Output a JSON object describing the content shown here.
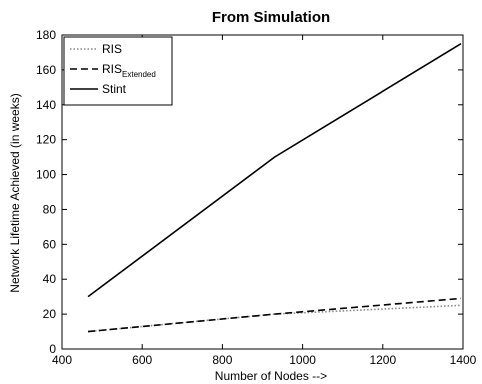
{
  "chart_data": {
    "type": "line",
    "title": "From Simulation",
    "xlabel": "Number of Nodes -->",
    "ylabel": "Network Lifetime Achieved (in weeks)",
    "xlim": [
      400,
      1400
    ],
    "ylim": [
      0,
      180
    ],
    "xticks": [
      400,
      600,
      800,
      1000,
      1200,
      1400
    ],
    "yticks": [
      0,
      20,
      40,
      60,
      80,
      100,
      120,
      140,
      160,
      180
    ],
    "grid": false,
    "legend_position": "top-left",
    "series": [
      {
        "name": "RIS",
        "line_style": "dotted",
        "color": "#888888",
        "x": [
          465,
          930,
          1395
        ],
        "y": [
          10,
          20,
          25
        ]
      },
      {
        "name": "RIS",
        "name_subscript": "Extended",
        "line_style": "dashed",
        "color": "#000000",
        "x": [
          465,
          930,
          1395
        ],
        "y": [
          10,
          20,
          29
        ]
      },
      {
        "name": "Stint",
        "line_style": "solid",
        "color": "#000000",
        "x": [
          465,
          930,
          1395
        ],
        "y": [
          30,
          110,
          175
        ]
      }
    ]
  }
}
